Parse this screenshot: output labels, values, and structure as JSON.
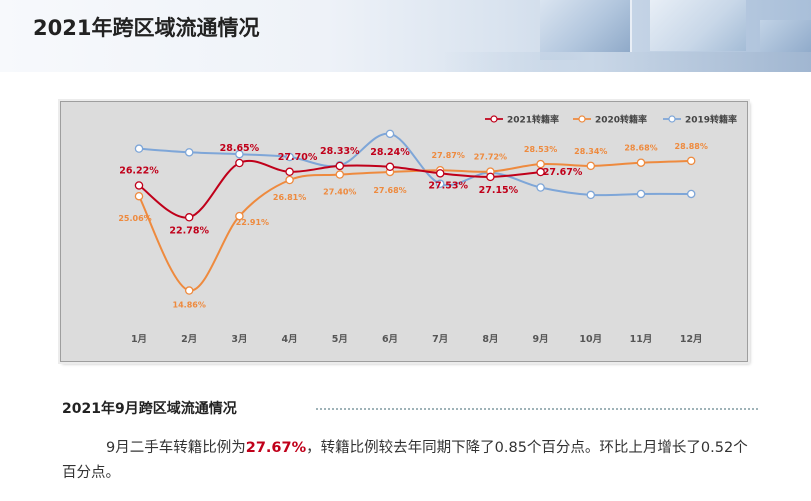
{
  "header": {
    "title": "2021年跨区域流通情况"
  },
  "section": {
    "title": "2021年9月跨区域流通情况",
    "text_before": "9月二手车转籍比例为",
    "highlight": "27.67%",
    "text_after": "，转籍比例较去年同期下降了0.85个百分点。环比上月增长了0.52个百分点。"
  },
  "colors": {
    "s2021": "#c0001a",
    "s2020": "#ee8a3e",
    "s2019": "#7ea6d8",
    "chart_bg": "#dcdcdc"
  },
  "chart_data": {
    "type": "line",
    "title": "",
    "categories": [
      "1月",
      "2月",
      "3月",
      "4月",
      "5月",
      "6月",
      "7月",
      "8月",
      "9月",
      "10月",
      "11月",
      "12月"
    ],
    "ylim": [
      12,
      32
    ],
    "legend_position": "top-right",
    "grid": false,
    "series": [
      {
        "name": "2021转籍率",
        "color": "#c0001a",
        "values": [
          26.22,
          22.78,
          28.65,
          27.7,
          28.33,
          28.24,
          27.53,
          27.15,
          27.67,
          null,
          null,
          null
        ],
        "labels": [
          "26.22%",
          "22.78%",
          "28.65%",
          "27.70%",
          "28.33%",
          "28.24%",
          "27.53%",
          "27.15%",
          "27.67%",
          null,
          null,
          null
        ]
      },
      {
        "name": "2020转籍率",
        "color": "#ee8a3e",
        "values": [
          25.06,
          14.86,
          22.91,
          26.81,
          27.4,
          27.68,
          27.87,
          27.72,
          28.53,
          28.34,
          28.68,
          28.88
        ],
        "labels": [
          "25.06%",
          "14.86%",
          "22.91%",
          "26.81%",
          "27.40%",
          "27.68%",
          "27.87%",
          "27.72%",
          "28.53%",
          "28.34%",
          "28.68%",
          "28.88%"
        ]
      },
      {
        "name": "2019转籍率",
        "color": "#7ea6d8",
        "values": [
          30.2,
          29.8,
          29.6,
          29.3,
          28.4,
          31.8,
          26.4,
          27.6,
          26.0,
          25.2,
          25.3,
          25.3
        ],
        "labels": [
          null,
          null,
          null,
          null,
          null,
          null,
          null,
          null,
          null,
          null,
          null,
          null
        ]
      }
    ]
  }
}
